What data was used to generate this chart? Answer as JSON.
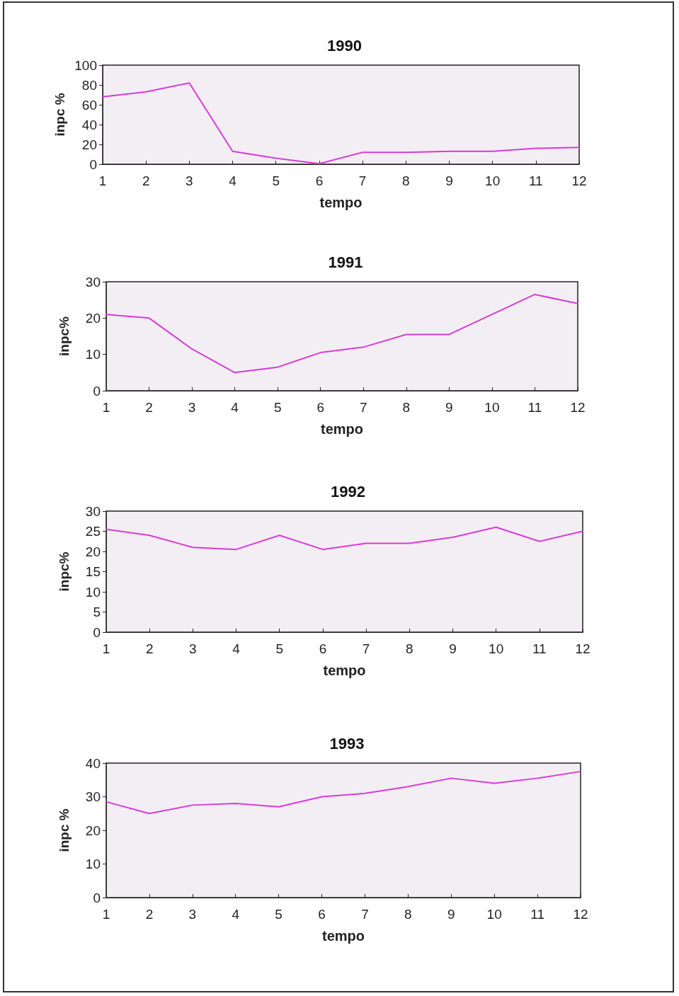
{
  "chart_data": [
    {
      "type": "line",
      "title": "1990",
      "xlabel": "tempo",
      "ylabel": "inpc %",
      "x": [
        1,
        2,
        3,
        4,
        5,
        6,
        7,
        8,
        9,
        10,
        11,
        12
      ],
      "xlim": [
        1,
        12
      ],
      "xticks": [
        1,
        2,
        3,
        4,
        5,
        6,
        7,
        8,
        9,
        10,
        11,
        12
      ],
      "ylim": [
        0,
        100
      ],
      "yticks": [
        0,
        20,
        40,
        60,
        80,
        100
      ],
      "marker": "none",
      "line_style": "solid",
      "series": [
        {
          "color": "#d63cd6",
          "values": [
            68,
            73,
            82,
            13,
            6,
            0.5,
            12,
            12,
            13,
            13,
            16,
            17
          ]
        }
      ]
    },
    {
      "type": "line",
      "title": "1991",
      "xlabel": "tempo",
      "ylabel": "inpc%",
      "x": [
        1,
        2,
        3,
        4,
        5,
        6,
        7,
        8,
        9,
        10,
        11,
        12
      ],
      "xlim": [
        1,
        12
      ],
      "xticks": [
        1,
        2,
        3,
        4,
        5,
        6,
        7,
        8,
        9,
        10,
        11,
        12
      ],
      "ylim": [
        0,
        30
      ],
      "yticks": [
        0,
        10,
        20,
        30
      ],
      "marker": "none",
      "line_style": "solid",
      "series": [
        {
          "color": "#d63cd6",
          "values": [
            21,
            20,
            11.5,
            5,
            6.5,
            10.5,
            12,
            15.5,
            15.5,
            21,
            26.5,
            24
          ]
        }
      ]
    },
    {
      "type": "line",
      "title": "1992",
      "xlabel": "tempo",
      "ylabel": "inpc%",
      "x": [
        1,
        2,
        3,
        4,
        5,
        6,
        7,
        8,
        9,
        10,
        11,
        12
      ],
      "xlim": [
        1,
        12
      ],
      "xticks": [
        1,
        2,
        3,
        4,
        5,
        6,
        7,
        8,
        9,
        10,
        11,
        12
      ],
      "ylim": [
        0,
        30
      ],
      "yticks": [
        0,
        5,
        10,
        15,
        20,
        25,
        30
      ],
      "marker": "none",
      "line_style": "solid",
      "series": [
        {
          "color": "#d63cd6",
          "values": [
            25.5,
            24,
            21,
            20.5,
            24,
            20.5,
            22,
            22,
            23.5,
            26,
            22.5,
            25
          ]
        }
      ]
    },
    {
      "type": "line",
      "title": "1993",
      "xlabel": "tempo",
      "ylabel": "inpc %",
      "x": [
        1,
        2,
        3,
        4,
        5,
        6,
        7,
        8,
        9,
        10,
        11,
        12
      ],
      "xlim": [
        1,
        12
      ],
      "xticks": [
        1,
        2,
        3,
        4,
        5,
        6,
        7,
        8,
        9,
        10,
        11,
        12
      ],
      "ylim": [
        0,
        40
      ],
      "yticks": [
        0,
        10,
        20,
        30,
        40
      ],
      "marker": "none",
      "line_style": "solid",
      "series": [
        {
          "color": "#d63cd6",
          "values": [
            28.5,
            25,
            27.5,
            28,
            27,
            30,
            31,
            33,
            35.5,
            34,
            35.5,
            37.5
          ]
        }
      ]
    }
  ]
}
